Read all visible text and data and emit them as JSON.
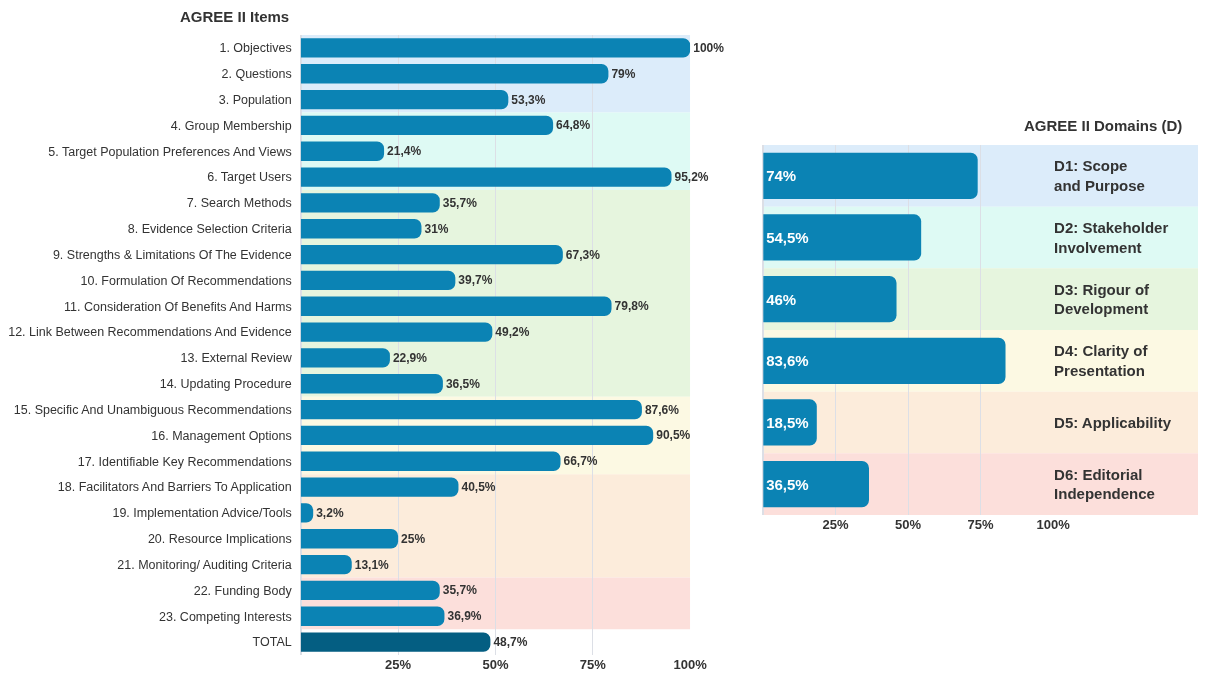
{
  "chart_data": [
    {
      "type": "bar",
      "orientation": "horizontal",
      "title": "AGREE II Items",
      "categories": [
        "1. Objectives",
        "2. Questions",
        "3. Population",
        "4. Group Membership",
        "5. Target Population Preferences And Views",
        "6. Target Users",
        "7. Search Methods",
        "8. Evidence Selection Criteria",
        "9. Strengths & Limitations Of The Evidence",
        "10. Formulation Of Recommendations",
        "11. Consideration Of Benefits And Harms",
        "12. Link Between Recommendations And Evidence",
        "13. External Review",
        "14. Updating Procedure",
        "15. Specific And Unambiguous Recommendations",
        "16. Management Options",
        "17. Identifiable Key Recommendations",
        "18. Facilitators And Barriers To Application",
        "19. Implementation Advice/Tools",
        "20. Resource Implications",
        "21. Monitoring/ Auditing Criteria",
        "22. Funding Body",
        "23. Competing Interests",
        "TOTAL"
      ],
      "values": [
        100,
        79,
        53.3,
        64.8,
        21.4,
        95.2,
        35.7,
        31,
        67.3,
        39.7,
        79.8,
        49.2,
        22.9,
        36.5,
        87.6,
        90.5,
        66.7,
        40.5,
        3.2,
        25,
        13.1,
        35.7,
        36.9,
        48.7
      ],
      "value_labels": [
        "100%",
        "79%",
        "53,3%",
        "64,8%",
        "21,4%",
        "95,2%",
        "35,7%",
        "31%",
        "67,3%",
        "39,7%",
        "79,8%",
        "49,2%",
        "22,9%",
        "36,5%",
        "87,6%",
        "90,5%",
        "66,7%",
        "40,5%",
        "3,2%",
        "25%",
        "13,1%",
        "35,7%",
        "36,9%",
        "48,7%"
      ],
      "colors": [
        "#0b83b4",
        "#0b83b4",
        "#0b83b4",
        "#0b83b4",
        "#0b83b4",
        "#0b83b4",
        "#0b83b4",
        "#0b83b4",
        "#0b83b4",
        "#0b83b4",
        "#0b83b4",
        "#0b83b4",
        "#0b83b4",
        "#0b83b4",
        "#0b83b4",
        "#0b83b4",
        "#0b83b4",
        "#0b83b4",
        "#0b83b4",
        "#0b83b4",
        "#0b83b4",
        "#0b83b4",
        "#0b83b4",
        "#045e82"
      ],
      "xlim": [
        0,
        100
      ],
      "xticks": [
        {
          "value": 25,
          "label": "25%"
        },
        {
          "value": 50,
          "label": "50%"
        },
        {
          "value": 75,
          "label": "75%"
        },
        {
          "value": 100,
          "label": "100%"
        }
      ],
      "grid": "x",
      "bands": [
        {
          "axis": "y",
          "from": "1. Objectives",
          "to": "3. Population",
          "color": "#dcecfa"
        },
        {
          "axis": "y",
          "from": "4. Group Membership",
          "to": "6. Target Users",
          "color": "#defaf4"
        },
        {
          "axis": "y",
          "from": "7. Search Methods",
          "to": "14. Updating Procedure",
          "color": "#e6f5de"
        },
        {
          "axis": "y",
          "from": "15. Specific And Unambiguous Recommendations",
          "to": "17. Identifiable Key Recommendations",
          "color": "#fcf9e3"
        },
        {
          "axis": "y",
          "from": "18. Facilitators And Barriers To Application",
          "to": "21. Monitoring/ Auditing Criteria",
          "color": "#fcecdb"
        },
        {
          "axis": "y",
          "from": "22. Funding Body",
          "to": "23. Competing Interests",
          "color": "#fcdfdb"
        }
      ]
    },
    {
      "type": "bar",
      "orientation": "horizontal",
      "title": "AGREE II Domains (D)",
      "categories": [
        "D1: Scope and Purpose",
        "D2: Stakeholder Involvement",
        "D3: Rigour of Development",
        "D4: Clarity of Presentation",
        "D5: Applicability",
        "D6: Editorial Independence"
      ],
      "values": [
        74,
        54.5,
        46,
        83.6,
        18.5,
        36.5
      ],
      "value_labels": [
        "74%",
        "54,5%",
        "46%",
        "83,6%",
        "18,5%",
        "36,5%"
      ],
      "colors": [
        "#0b83b4",
        "#0b83b4",
        "#0b83b4",
        "#0b83b4",
        "#0b83b4",
        "#0b83b4"
      ],
      "xlim": [
        0,
        100
      ],
      "xticks": [
        {
          "value": 25,
          "label": "25%"
        },
        {
          "value": 50,
          "label": "50%"
        },
        {
          "value": 75,
          "label": "75%"
        },
        {
          "value": 100,
          "label": "100%"
        }
      ],
      "grid": "x",
      "bands": [
        {
          "axis": "y",
          "from": "D1: Scope and Purpose",
          "to": "D1: Scope and Purpose",
          "color": "#dcecfa"
        },
        {
          "axis": "y",
          "from": "D2: Stakeholder Involvement",
          "to": "D2: Stakeholder Involvement",
          "color": "#defaf4"
        },
        {
          "axis": "y",
          "from": "D3: Rigour of Development",
          "to": "D3: Rigour of Development",
          "color": "#e6f5de"
        },
        {
          "axis": "y",
          "from": "D4: Clarity of Presentation",
          "to": "D4: Clarity of Presentation",
          "color": "#fcf9e3"
        },
        {
          "axis": "y",
          "from": "D5: Applicability",
          "to": "D5: Applicability",
          "color": "#fcecdb"
        },
        {
          "axis": "y",
          "from": "D6: Editorial Independence",
          "to": "D6: Editorial Independence",
          "color": "#fcdfdb"
        }
      ]
    }
  ]
}
